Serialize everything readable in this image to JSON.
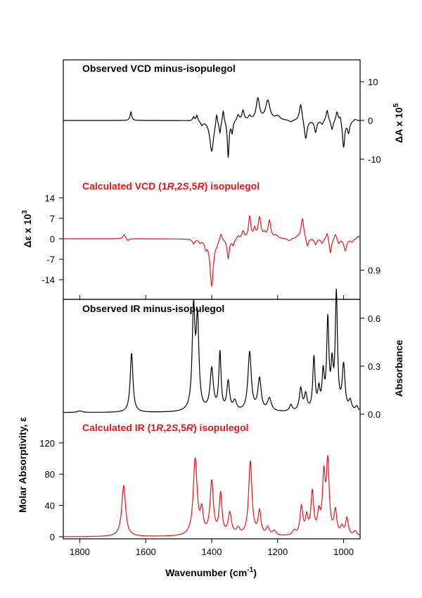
{
  "colors": {
    "observed": "#000000",
    "calculated": "#e8141a",
    "axes": "#000000"
  },
  "chart_data": [
    {
      "type": "line",
      "title": "Observed VCD minus-isopulegol",
      "ylabel": "ΔA x 10",
      "ylabel_sup": "5",
      "y_axis_side": "right",
      "yticks": [
        10,
        0,
        -10
      ],
      "ylim": [
        -15,
        15
      ],
      "xlim": [
        1850,
        950
      ],
      "baseline": 0,
      "peaks": [
        {
          "x": 1645,
          "y": 2.2,
          "w": 3
        },
        {
          "x": 1455,
          "y": 1.0,
          "w": 3
        },
        {
          "x": 1445,
          "y": 1.5,
          "w": 3
        },
        {
          "x": 1430,
          "y": -1.0,
          "w": 4
        },
        {
          "x": 1400,
          "y": -8.0,
          "w": 7
        },
        {
          "x": 1385,
          "y": 3.0,
          "w": 3
        },
        {
          "x": 1375,
          "y": -3.0,
          "w": 3
        },
        {
          "x": 1365,
          "y": 3.2,
          "w": 3
        },
        {
          "x": 1350,
          "y": -9.5,
          "w": 3
        },
        {
          "x": 1338,
          "y": -3.0,
          "w": 3
        },
        {
          "x": 1320,
          "y": 1.5,
          "w": 4
        },
        {
          "x": 1305,
          "y": 2.5,
          "w": 4
        },
        {
          "x": 1285,
          "y": 1.0,
          "w": 4
        },
        {
          "x": 1260,
          "y": 5.5,
          "w": 6
        },
        {
          "x": 1230,
          "y": 5.0,
          "w": 8
        },
        {
          "x": 1200,
          "y": 1.0,
          "w": 8
        },
        {
          "x": 1160,
          "y": -0.5,
          "w": 6
        },
        {
          "x": 1130,
          "y": 4.5,
          "w": 5
        },
        {
          "x": 1115,
          "y": -5.0,
          "w": 5
        },
        {
          "x": 1085,
          "y": -3.0,
          "w": 4
        },
        {
          "x": 1065,
          "y": -1.0,
          "w": 4
        },
        {
          "x": 1050,
          "y": 2.8,
          "w": 4
        },
        {
          "x": 1035,
          "y": -2.5,
          "w": 4
        },
        {
          "x": 1020,
          "y": 2.5,
          "w": 4
        },
        {
          "x": 1010,
          "y": 1.5,
          "w": 3
        },
        {
          "x": 1000,
          "y": -7.0,
          "w": 4
        },
        {
          "x": 985,
          "y": -3.0,
          "w": 4
        },
        {
          "x": 965,
          "y": 0.5,
          "w": 4
        }
      ]
    },
    {
      "type": "line",
      "title_parts": [
        "Calculated VCD (1",
        "R",
        ",2",
        "S",
        ",5",
        "R",
        ") isopulegol"
      ],
      "ylabel": "Δε x 10",
      "ylabel_sup": "3",
      "y_axis_side": "left",
      "yticks": [
        14,
        7,
        0,
        -7,
        -14
      ],
      "ylim": [
        -17,
        17
      ],
      "xlim": [
        1850,
        950
      ],
      "baseline": 0,
      "peaks": [
        {
          "x": 1665,
          "y": 1.5,
          "w": 5
        },
        {
          "x": 1655,
          "y": -0.8,
          "w": 5
        },
        {
          "x": 1455,
          "y": -1.5,
          "w": 4
        },
        {
          "x": 1435,
          "y": -1.0,
          "w": 4
        },
        {
          "x": 1418,
          "y": -2.5,
          "w": 4
        },
        {
          "x": 1400,
          "y": -16.0,
          "w": 6
        },
        {
          "x": 1385,
          "y": -1.0,
          "w": 4
        },
        {
          "x": 1372,
          "y": 2.5,
          "w": 4
        },
        {
          "x": 1350,
          "y": -6.5,
          "w": 4
        },
        {
          "x": 1335,
          "y": -2.0,
          "w": 4
        },
        {
          "x": 1320,
          "y": 1.0,
          "w": 4
        },
        {
          "x": 1305,
          "y": 2.5,
          "w": 4
        },
        {
          "x": 1285,
          "y": 7.5,
          "w": 4
        },
        {
          "x": 1270,
          "y": 3.0,
          "w": 4
        },
        {
          "x": 1255,
          "y": 7.0,
          "w": 5
        },
        {
          "x": 1240,
          "y": 1.5,
          "w": 4
        },
        {
          "x": 1225,
          "y": 6.0,
          "w": 5
        },
        {
          "x": 1205,
          "y": 1.0,
          "w": 6
        },
        {
          "x": 1165,
          "y": -0.8,
          "w": 6
        },
        {
          "x": 1140,
          "y": 0.5,
          "w": 4
        },
        {
          "x": 1125,
          "y": 7.0,
          "w": 5
        },
        {
          "x": 1110,
          "y": -3.0,
          "w": 4
        },
        {
          "x": 1085,
          "y": -2.0,
          "w": 4
        },
        {
          "x": 1065,
          "y": -1.5,
          "w": 4
        },
        {
          "x": 1050,
          "y": 2.5,
          "w": 4
        },
        {
          "x": 1040,
          "y": -5.0,
          "w": 4
        },
        {
          "x": 1025,
          "y": 2.0,
          "w": 4
        },
        {
          "x": 1015,
          "y": -1.5,
          "w": 4
        },
        {
          "x": 995,
          "y": -4.0,
          "w": 5
        },
        {
          "x": 975,
          "y": -1.0,
          "w": 5
        },
        {
          "x": 955,
          "y": 1.0,
          "w": 5
        }
      ]
    },
    {
      "type": "line",
      "title": "Observed IR minus-isopulegol",
      "ylabel": "Absorbance",
      "y_axis_side": "right",
      "yticks": [
        0.9,
        0.6,
        0.3,
        0.0
      ],
      "ytick_labels": [
        "0.9",
        "0.6",
        "0.3",
        "0.0"
      ],
      "ylim": [
        -0.05,
        0.95
      ],
      "xlim": [
        1850,
        950
      ],
      "baseline": 0.01,
      "peaks": [
        {
          "x": 1800,
          "y": 0.01,
          "w": 8
        },
        {
          "x": 1643,
          "y": 0.37,
          "w": 5
        },
        {
          "x": 1455,
          "y": 0.62,
          "w": 5
        },
        {
          "x": 1443,
          "y": 0.55,
          "w": 5
        },
        {
          "x": 1400,
          "y": 0.26,
          "w": 6
        },
        {
          "x": 1375,
          "y": 0.36,
          "w": 4
        },
        {
          "x": 1350,
          "y": 0.18,
          "w": 5
        },
        {
          "x": 1330,
          "y": 0.06,
          "w": 6
        },
        {
          "x": 1285,
          "y": 0.37,
          "w": 6
        },
        {
          "x": 1255,
          "y": 0.2,
          "w": 6
        },
        {
          "x": 1225,
          "y": 0.08,
          "w": 7
        },
        {
          "x": 1160,
          "y": 0.04,
          "w": 5
        },
        {
          "x": 1130,
          "y": 0.14,
          "w": 5
        },
        {
          "x": 1115,
          "y": 0.1,
          "w": 5
        },
        {
          "x": 1090,
          "y": 0.33,
          "w": 4
        },
        {
          "x": 1075,
          "y": 0.12,
          "w": 4
        },
        {
          "x": 1062,
          "y": 0.22,
          "w": 4
        },
        {
          "x": 1048,
          "y": 0.55,
          "w": 4
        },
        {
          "x": 1035,
          "y": 0.25,
          "w": 4
        },
        {
          "x": 1022,
          "y": 0.72,
          "w": 4
        },
        {
          "x": 1000,
          "y": 0.28,
          "w": 5
        },
        {
          "x": 980,
          "y": 0.06,
          "w": 5
        },
        {
          "x": 960,
          "y": 0.03,
          "w": 5
        }
      ]
    },
    {
      "type": "line",
      "title_parts": [
        "Calculated IR (1",
        "R",
        ",2",
        "S",
        ",5",
        "R",
        ") isopulegol"
      ],
      "ylabel": "Molar Absorptivity, ε",
      "y_axis_side": "left",
      "yticks": [
        120,
        80,
        40,
        0
      ],
      "ylim": [
        0,
        140
      ],
      "xlim": [
        1850,
        950
      ],
      "xticks": [
        1800,
        1600,
        1400,
        1200,
        1000
      ],
      "xlabel": "Wavenumber (cm",
      "xlabel_sup": "-1",
      "xlabel_end": ")",
      "baseline": 0,
      "peaks": [
        {
          "x": 1667,
          "y": 65,
          "w": 7
        },
        {
          "x": 1450,
          "y": 98,
          "w": 7
        },
        {
          "x": 1430,
          "y": 28,
          "w": 5
        },
        {
          "x": 1400,
          "y": 68,
          "w": 6
        },
        {
          "x": 1373,
          "y": 52,
          "w": 5
        },
        {
          "x": 1345,
          "y": 28,
          "w": 6
        },
        {
          "x": 1320,
          "y": 8,
          "w": 6
        },
        {
          "x": 1283,
          "y": 95,
          "w": 6
        },
        {
          "x": 1255,
          "y": 30,
          "w": 5
        },
        {
          "x": 1230,
          "y": 10,
          "w": 6
        },
        {
          "x": 1210,
          "y": 6,
          "w": 6
        },
        {
          "x": 1150,
          "y": 6,
          "w": 6
        },
        {
          "x": 1128,
          "y": 36,
          "w": 5
        },
        {
          "x": 1112,
          "y": 22,
          "w": 5
        },
        {
          "x": 1095,
          "y": 54,
          "w": 5
        },
        {
          "x": 1075,
          "y": 25,
          "w": 5
        },
        {
          "x": 1060,
          "y": 72,
          "w": 5
        },
        {
          "x": 1048,
          "y": 90,
          "w": 5
        },
        {
          "x": 1025,
          "y": 30,
          "w": 5
        },
        {
          "x": 1005,
          "y": 10,
          "w": 5
        },
        {
          "x": 990,
          "y": 22,
          "w": 5
        },
        {
          "x": 965,
          "y": 6,
          "w": 6
        }
      ]
    }
  ]
}
